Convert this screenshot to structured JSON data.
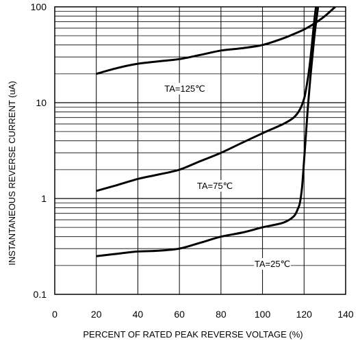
{
  "chart_data": {
    "type": "line",
    "title": "",
    "xlabel": "PERCENT OF RATED PEAK REVERSE VOLTAGE (%)",
    "ylabel": "INSTANTANEOUS REVERSE CURRENT (uA)",
    "xlim": [
      0,
      140
    ],
    "ylim": [
      0.1,
      100
    ],
    "yscale": "log",
    "grid": true,
    "x_ticks": [
      "0",
      "20",
      "40",
      "60",
      "80",
      "100",
      "120",
      "140"
    ],
    "y_ticks": [
      "0.1",
      "1",
      "10",
      "100"
    ],
    "legend": "none",
    "series": [
      {
        "name": "TA=125℃",
        "x": [
          20,
          30,
          40,
          50,
          60,
          70,
          80,
          90,
          100,
          110,
          115,
          120,
          125,
          130,
          135
        ],
        "y": [
          20,
          23,
          25.5,
          27,
          28.5,
          31.5,
          35,
          37,
          40,
          47,
          52,
          58,
          67,
          80,
          100
        ]
      },
      {
        "name": "TA=75℃",
        "x": [
          20,
          30,
          40,
          50,
          60,
          70,
          80,
          90,
          100,
          110,
          115,
          118,
          120,
          121,
          122,
          123,
          124,
          125,
          126
        ],
        "y": [
          1.2,
          1.38,
          1.6,
          1.78,
          2.0,
          2.45,
          3.0,
          3.8,
          4.8,
          6.0,
          7.0,
          8.5,
          11,
          14,
          19,
          28,
          45,
          75,
          110
        ]
      },
      {
        "name": "TA=25℃",
        "x": [
          20,
          30,
          40,
          50,
          60,
          70,
          80,
          90,
          100,
          110,
          115,
          117,
          118,
          119,
          120,
          121,
          122,
          123,
          124,
          125,
          126,
          127
        ],
        "y": [
          0.25,
          0.265,
          0.28,
          0.285,
          0.3,
          0.345,
          0.4,
          0.44,
          0.5,
          0.56,
          0.65,
          0.78,
          0.9,
          1.3,
          2.5,
          5.0,
          10,
          18,
          30,
          50,
          75,
          110
        ]
      }
    ]
  }
}
